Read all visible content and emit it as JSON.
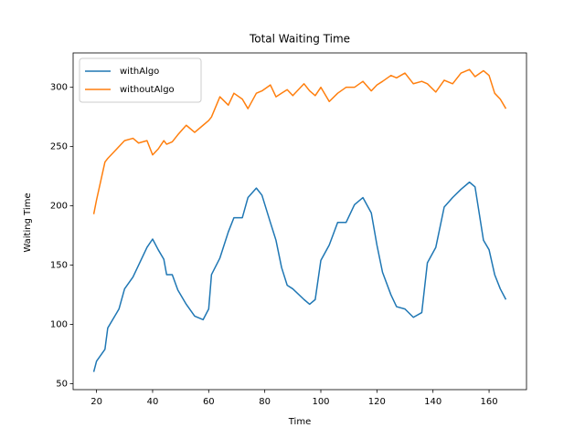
{
  "chart_data": {
    "type": "line",
    "title": "Total Waiting Time",
    "x_label": "Time",
    "y_label": "Waiting Time",
    "x": [
      19,
      20,
      23,
      24,
      28,
      30,
      33,
      35,
      38,
      40,
      42,
      44,
      45,
      47,
      49,
      52,
      55,
      58,
      60,
      61,
      64,
      67,
      69,
      72,
      74,
      77,
      79,
      82,
      84,
      86,
      88,
      90,
      94,
      96,
      98,
      100,
      103,
      106,
      109,
      112,
      115,
      118,
      120,
      122,
      125,
      127,
      130,
      133,
      136,
      138,
      141,
      144,
      147,
      150,
      153,
      155,
      158,
      160,
      162,
      164,
      166
    ],
    "series": [
      {
        "name": "withAlgo",
        "color": "#1f77b4",
        "values": [
          60,
          69,
          79,
          97,
          113,
          130,
          140,
          150,
          165,
          172,
          163,
          155,
          142,
          142,
          129,
          117,
          107,
          104,
          113,
          142,
          156,
          178,
          190,
          190,
          207,
          215,
          209,
          186,
          171,
          148,
          133,
          130,
          121,
          117,
          121,
          154,
          167,
          186,
          186,
          201,
          207,
          194,
          167,
          144,
          125,
          115,
          113,
          106,
          110,
          152,
          165,
          199,
          207,
          214,
          220,
          216,
          171,
          163,
          142,
          130,
          121
        ]
      },
      {
        "name": "withoutAlgo",
        "color": "#ff7f0e",
        "values": [
          193,
          205,
          237,
          240,
          250,
          255,
          257,
          253,
          255,
          243,
          248,
          255,
          252,
          254,
          260,
          268,
          262,
          268,
          272,
          275,
          292,
          285,
          295,
          290,
          282,
          295,
          297,
          302,
          292,
          295,
          298,
          293,
          303,
          297,
          293,
          300,
          288,
          295,
          300,
          300,
          305,
          297,
          302,
          305,
          310,
          308,
          312,
          303,
          305,
          303,
          296,
          306,
          303,
          312,
          315,
          309,
          314,
          310,
          295,
          290,
          282
        ]
      }
    ],
    "xlim": [
      11.65,
      173.35
    ],
    "ylim": [
      45,
      329
    ],
    "xticks": [
      20,
      40,
      60,
      80,
      100,
      120,
      140,
      160
    ],
    "yticks": [
      50,
      100,
      150,
      200,
      250,
      300
    ],
    "legend": "upper left",
    "grid": false
  }
}
